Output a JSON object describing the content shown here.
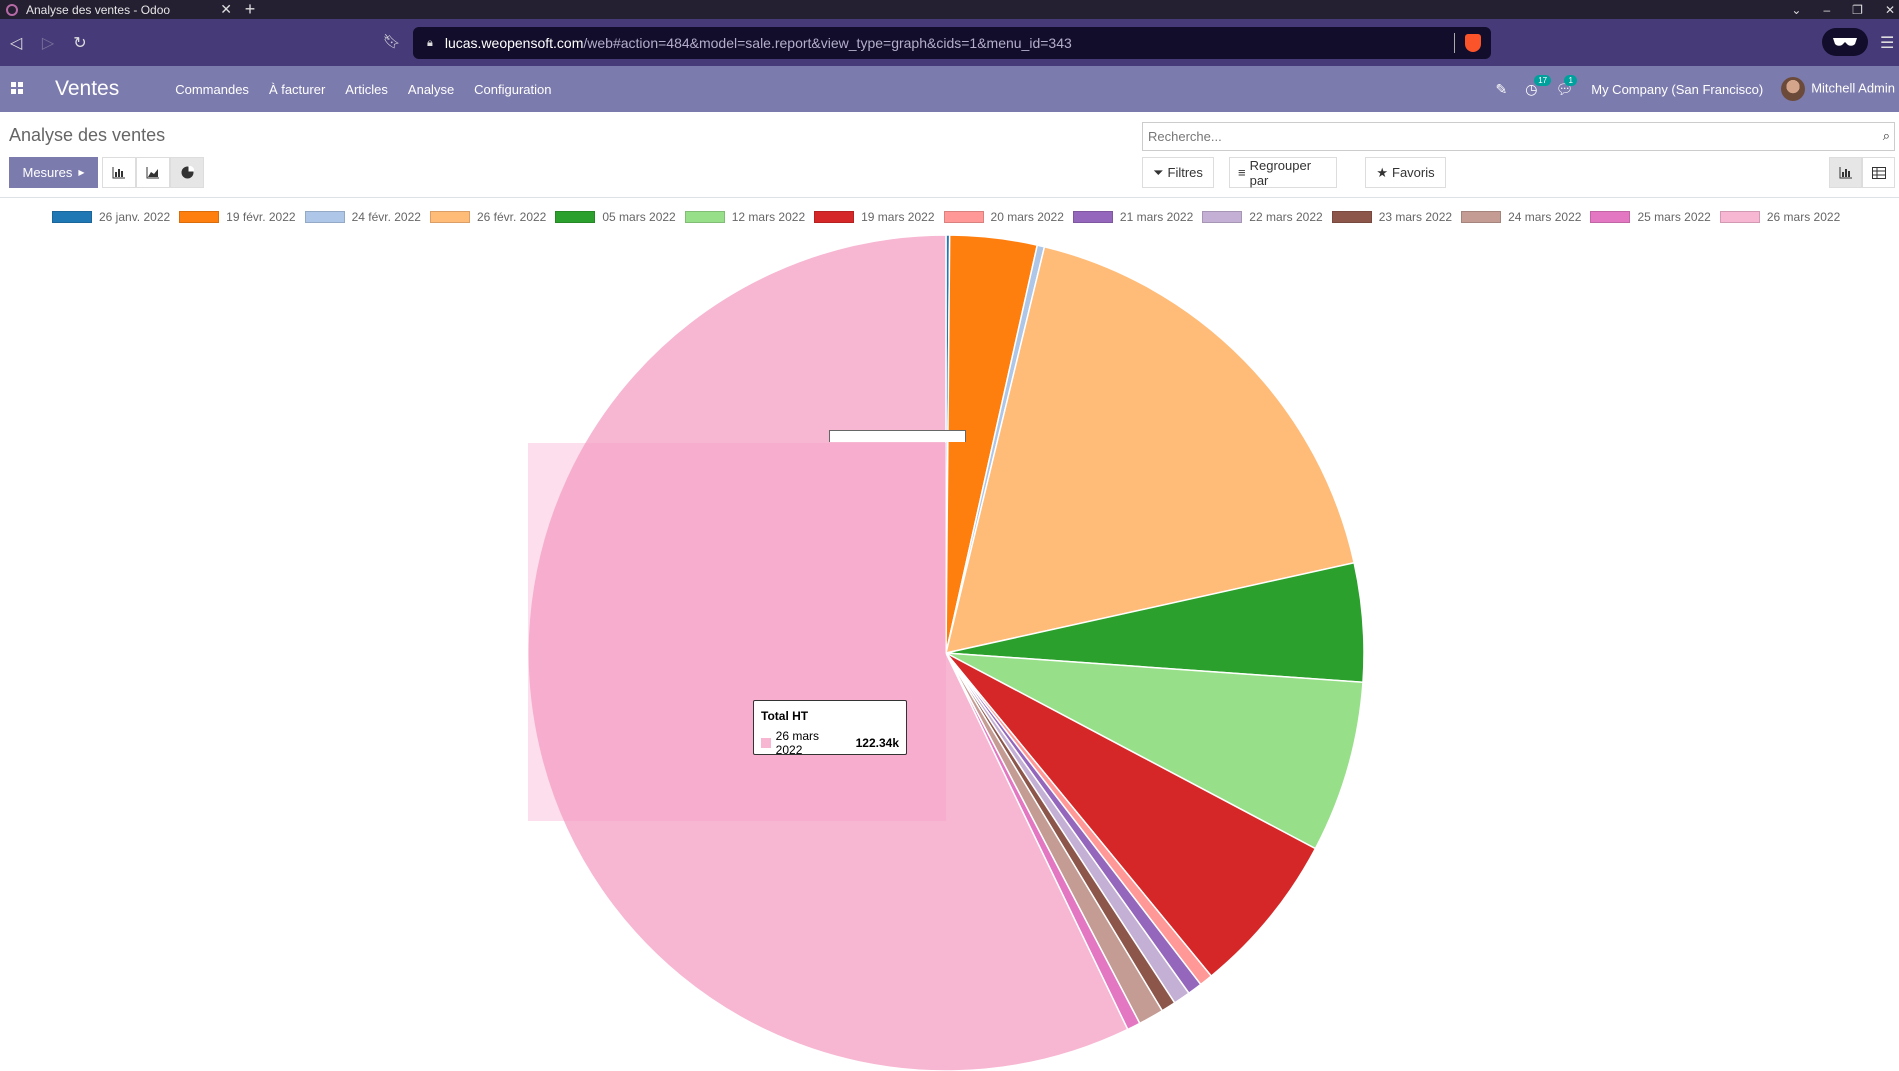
{
  "browser": {
    "tab_title": "Analyse des ventes - Odoo",
    "url_host": "lucas.weopensoft.com",
    "url_path": "/web#action=484&model=sale.report&view_type=graph&cids=1&menu_id=343"
  },
  "navbar": {
    "app_name": "Ventes",
    "menu": [
      "Commandes",
      "À facturer",
      "Articles",
      "Analyse",
      "Configuration"
    ],
    "activity_count": "17",
    "message_count": "1",
    "company": "My Company (San Francisco)",
    "user": "Mitchell Admin"
  },
  "control_panel": {
    "breadcrumb": "Analyse des ventes",
    "search_placeholder": "Recherche...",
    "measures_label": "Mesures",
    "filters_label": "Filtres",
    "group_by_label": "Regrouper par",
    "favorites_label": "Favoris"
  },
  "chart_data": {
    "type": "pie",
    "measure": "Total HT",
    "legend_position": "top",
    "categories": [
      "26 janv. 2022",
      "19 févr. 2022",
      "24 févr. 2022",
      "26 févr. 2022",
      "05 mars 2022",
      "12 mars 2022",
      "19 mars 2022",
      "20 mars 2022",
      "21 mars 2022",
      "22 mars 2022",
      "23 mars 2022",
      "24 mars 2022",
      "25 mars 2022",
      "26 mars 2022"
    ],
    "values": [
      0.3,
      7.2,
      0.6,
      38.0,
      9.8,
      14.2,
      13.5,
      1.1,
      1.2,
      1.4,
      1.2,
      2.1,
      1.1,
      122.34
    ],
    "colors": [
      "#1f77b4",
      "#ff7f0e",
      "#aec7e8",
      "#ffbb78",
      "#2ca02c",
      "#98df8a",
      "#d62728",
      "#ff9896",
      "#9467bd",
      "#c5b0d5",
      "#8c564b",
      "#c49c94",
      "#e377c2",
      "#f7b6d2"
    ],
    "tooltip": {
      "title": "Total HT",
      "label": "26 mars 2022",
      "value": "122.34k"
    }
  }
}
